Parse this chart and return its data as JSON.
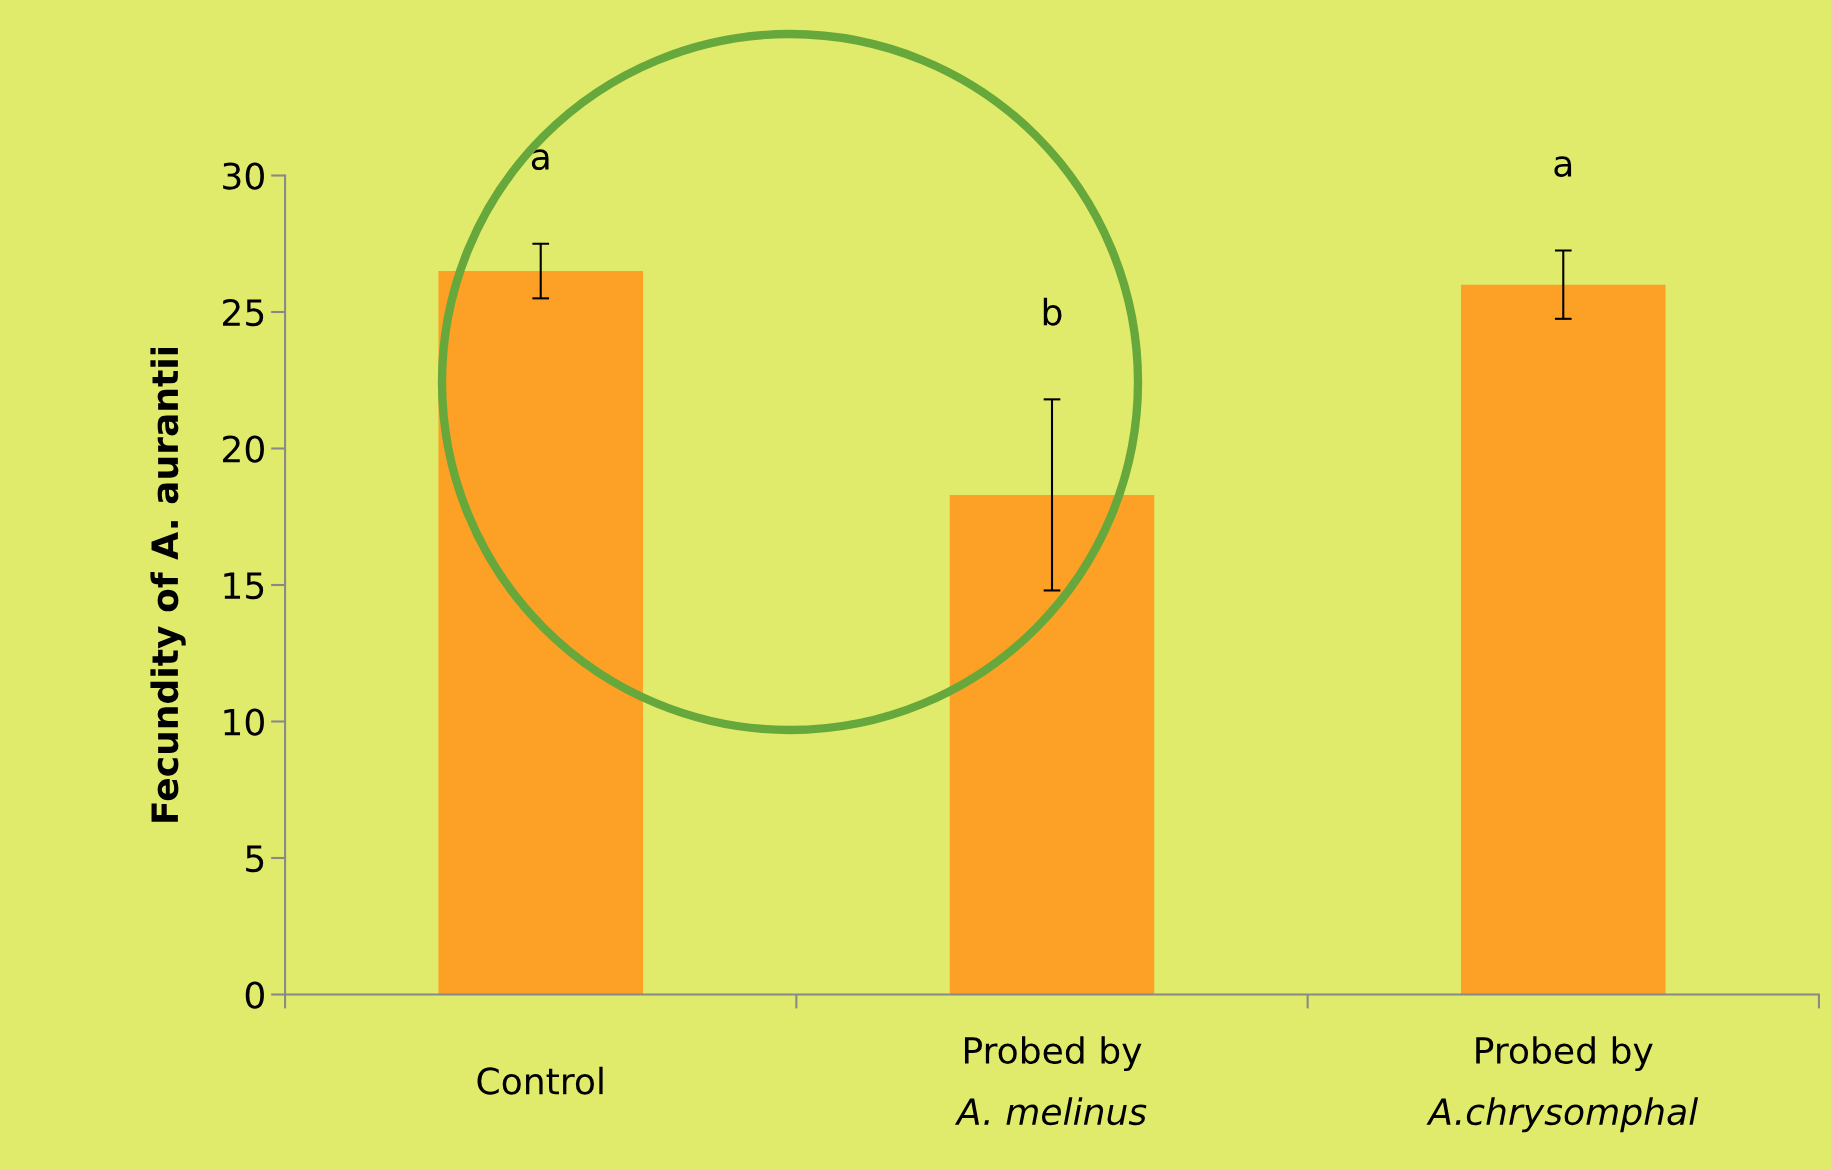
{
  "chart_data": {
    "type": "bar",
    "ylabel": "Fecundity of A. aurantii",
    "categories": [
      "Control",
      "Probed by\nA. melinus",
      "Probed by\nA.chrysomphal"
    ],
    "values": [
      26.5,
      18.3,
      26.0
    ],
    "errors": [
      1.0,
      3.5,
      1.25
    ],
    "color": "#fca125",
    "ylim": [
      0,
      30
    ],
    "yticks": [
      0,
      5,
      10,
      15,
      20,
      25,
      30
    ],
    "grid": false,
    "annotations": [
      "a",
      "b",
      "a"
    ]
  }
}
